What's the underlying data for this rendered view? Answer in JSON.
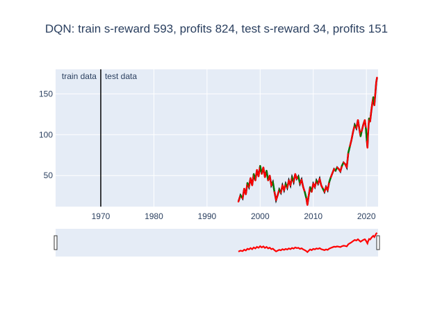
{
  "chart_data": {
    "type": "line",
    "title": "DQN: train s-reward 593, profits 824, test s-reward 34, profits 151",
    "xlabel": "",
    "ylabel": "",
    "xlim": [
      1961.5,
      2022.2
    ],
    "ylim": [
      12,
      180
    ],
    "x_ticks": [
      1970,
      1980,
      1990,
      2000,
      2010,
      2020
    ],
    "y_ticks": [
      50,
      100,
      150
    ],
    "grid": true,
    "legend": "none",
    "split_line_x": 1970,
    "annotations": [
      "train data",
      "test data"
    ],
    "range_slider": true,
    "colors": {
      "background": "#e5ecf6",
      "grid": "#ffffff",
      "price_line": "#000000",
      "buy_marks": "#008000",
      "sell_marks": "#ff0000",
      "split_line": "#000000"
    },
    "series": [
      {
        "x": [
          1995.9,
          1996.3,
          1996.7,
          1997.0,
          1997.3,
          1997.6,
          1997.9,
          1998.2,
          1998.5,
          1998.8,
          1999.1,
          1999.4,
          1999.7,
          2000.0,
          2000.3,
          2000.6,
          2000.9,
          2001.2,
          2001.5,
          2001.8,
          2002.1,
          2002.4,
          2002.7,
          2003.0,
          2003.3,
          2003.6,
          2003.9,
          2004.2,
          2004.5,
          2004.8,
          2005.1,
          2005.4,
          2005.7,
          2006.0,
          2006.3,
          2006.6,
          2006.9,
          2007.2,
          2007.5,
          2007.8,
          2008.1,
          2008.4,
          2008.7,
          2008.9,
          2009.1,
          2009.4,
          2009.7,
          2010.0,
          2010.3,
          2010.6,
          2010.9,
          2011.2,
          2011.5,
          2011.8,
          2012.1,
          2012.4,
          2012.7,
          2013.0,
          2013.3,
          2013.6,
          2013.9,
          2014.2,
          2014.5,
          2014.8,
          2015.1,
          2015.4,
          2015.7,
          2016.0,
          2016.3,
          2016.6,
          2016.9,
          2017.2,
          2017.5,
          2017.8,
          2018.1,
          2018.4,
          2018.7,
          2018.9,
          2019.1,
          2019.4,
          2019.7,
          2019.9,
          2020.1,
          2020.2,
          2020.3,
          2020.5,
          2020.7,
          2020.9,
          2021.1,
          2021.3,
          2021.5,
          2021.7,
          2021.85,
          2022.0
        ],
        "y": [
          18,
          26,
          22,
          34,
          27,
          41,
          36,
          47,
          38,
          52,
          44,
          57,
          49,
          62,
          52,
          60,
          48,
          56,
          44,
          50,
          38,
          42,
          30,
          20,
          26,
          33,
          29,
          38,
          32,
          40,
          35,
          44,
          38,
          48,
          42,
          52,
          46,
          49,
          40,
          45,
          36,
          30,
          22,
          14,
          24,
          36,
          30,
          40,
          36,
          44,
          40,
          46,
          38,
          34,
          30,
          36,
          32,
          42,
          48,
          53,
          58,
          56,
          60,
          58,
          55,
          62,
          66,
          64,
          60,
          78,
          86,
          94,
          104,
          112,
          108,
          118,
          106,
          98,
          104,
          112,
          118,
          108,
          92,
          84,
          100,
          120,
          116,
          128,
          138,
          146,
          136,
          152,
          164,
          170
        ]
      }
    ]
  }
}
